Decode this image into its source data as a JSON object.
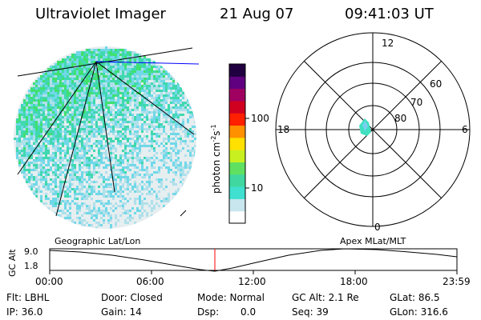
{
  "header": {
    "title": "Ultraviolet Imager",
    "date": "21 Aug 07",
    "time": "09:41:03 UT"
  },
  "colorbar": {
    "unit_label": "photon cm",
    "unit_exp1": "-2",
    "unit_s": "s",
    "unit_exp2": "-1",
    "ticks": [
      "100",
      "10"
    ],
    "colors": [
      "#ffffff",
      "#c8e6ee",
      "#40e0d0",
      "#40d8a0",
      "#60e060",
      "#c8f020",
      "#ffe000",
      "#ff9000",
      "#ff2000",
      "#d00020",
      "#a00060",
      "#600080",
      "#200040"
    ]
  },
  "polar_plot": {
    "lat_labels": [
      "60",
      "70",
      "80"
    ],
    "mlt_labels": {
      "top": "12",
      "bottom": "0",
      "left": "18",
      "right": "6"
    }
  },
  "altitude_plot": {
    "ylabel": "GC Alt",
    "yticks": [
      "9.0",
      "1.8"
    ],
    "left_title": "Geographic Lat/Lon",
    "right_title": "Apex MLat/MLT",
    "xticks": [
      "00:00",
      "06:00",
      "12:00",
      "18:00",
      "23:59"
    ],
    "current_marker_color": "#ff0000"
  },
  "status": {
    "filter": "Flt: LBHL",
    "ip": "IP: 36.0",
    "door": "Door: Closed",
    "gain": "Gain: 14",
    "mode": "Mode: Normal",
    "dsp_label": "Dsp:",
    "dsp_value": "0.0",
    "gc_alt": "GC Alt: 2.1 Re",
    "seq": "Seq: 39",
    "glat": "GLat: 86.5",
    "glon": "GLon: 316.6"
  }
}
